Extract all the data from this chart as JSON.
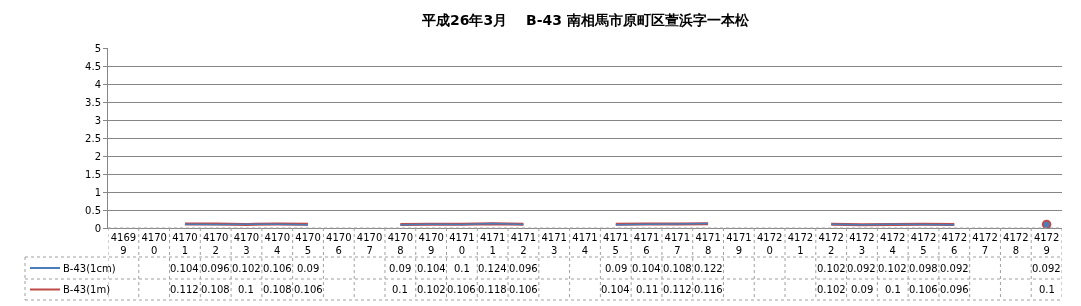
{
  "chart_data": {
    "type": "line",
    "title": "平成26年3月　 B-43 南相馬市原町区萱浜字一本松",
    "categories": [
      "41699",
      "41700",
      "41701",
      "41702",
      "41703",
      "41704",
      "41705",
      "41706",
      "41707",
      "41708",
      "41709",
      "41710",
      "41711",
      "41712",
      "41713",
      "41714",
      "41715",
      "41716",
      "41717",
      "41718",
      "41719",
      "41720",
      "41721",
      "41722",
      "41723",
      "41724",
      "41725",
      "41726",
      "41727",
      "41728",
      "41729"
    ],
    "series": [
      {
        "name": "B-43(1cm)",
        "color": "#4a7ebb",
        "values": [
          null,
          null,
          0.104,
          0.096,
          0.102,
          0.106,
          0.09,
          null,
          null,
          0.09,
          0.104,
          0.1,
          0.124,
          0.096,
          null,
          null,
          0.09,
          0.104,
          0.108,
          0.122,
          null,
          null,
          null,
          0.102,
          0.092,
          0.102,
          0.098,
          0.092,
          null,
          null,
          0.092
        ]
      },
      {
        "name": "B-43(1m)",
        "color": "#be4b48",
        "values": [
          null,
          null,
          0.112,
          0.108,
          0.1,
          0.108,
          0.106,
          null,
          null,
          0.1,
          0.102,
          0.106,
          0.118,
          0.106,
          null,
          null,
          0.104,
          0.11,
          0.112,
          0.116,
          null,
          null,
          null,
          0.102,
          0.09,
          0.1,
          0.106,
          0.096,
          null,
          null,
          0.1
        ]
      }
    ],
    "ylim": [
      0,
      5
    ],
    "yticks": [
      0,
      0.5,
      1,
      1.5,
      2,
      2.5,
      3,
      3.5,
      4,
      4.5,
      5
    ],
    "grid": "y",
    "legend": "bottom",
    "data_labels": true,
    "marker": "none",
    "line_style": "solid"
  }
}
